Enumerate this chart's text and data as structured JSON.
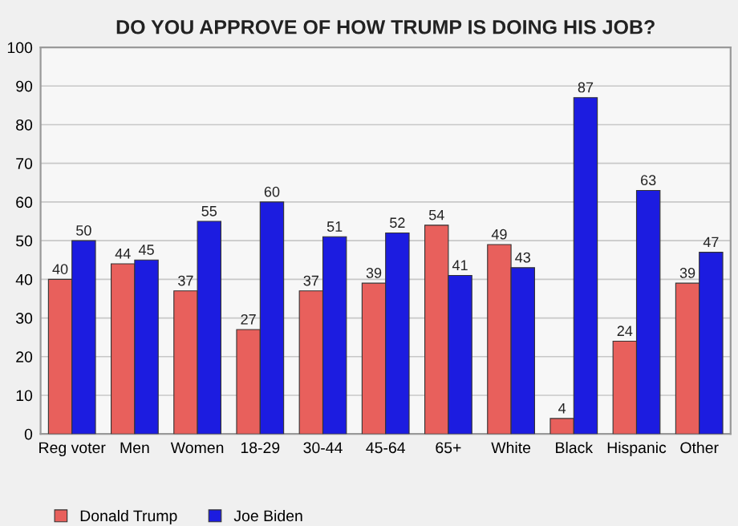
{
  "chart_data": {
    "type": "bar",
    "title": "DO YOU APPROVE OF HOW TRUMP IS DOING HIS JOB?",
    "categories": [
      "Reg voter",
      "Men",
      "Women",
      "18-29",
      "30-44",
      "45-64",
      "65+",
      "White",
      "Black",
      "Hispanic",
      "Other"
    ],
    "series": [
      {
        "name": "Donald Trump",
        "color": "#e8605c",
        "values": [
          40,
          44,
          37,
          27,
          37,
          39,
          54,
          49,
          4,
          24,
          39
        ]
      },
      {
        "name": "Joe Biden",
        "color": "#1c1ce0",
        "values": [
          50,
          45,
          55,
          60,
          51,
          52,
          41,
          43,
          87,
          63,
          47
        ]
      }
    ],
    "ylim": [
      0,
      100
    ],
    "yticks": [
      0,
      10,
      20,
      30,
      40,
      50,
      60,
      70,
      80,
      90,
      100
    ],
    "grid": "y",
    "legend": "bottom left",
    "data_labels": true
  }
}
